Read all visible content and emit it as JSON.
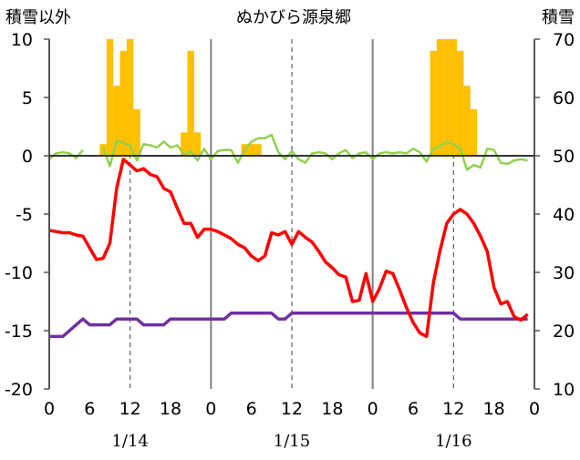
{
  "chart_data": {
    "type": "bar+line",
    "title": "ぬかびら源泉郷",
    "left_axis_label": "積雪以外",
    "right_axis_label": "積雪",
    "left_ylim": [
      -20,
      10
    ],
    "left_yticks": [
      10,
      5,
      0,
      -5,
      -10,
      -15,
      -20
    ],
    "right_ylim": [
      10,
      70
    ],
    "right_yticks": [
      70,
      60,
      50,
      40,
      30,
      20,
      10
    ],
    "x_range_hours": [
      0,
      72
    ],
    "x_tick_labels": [
      "0",
      "6",
      "12",
      "18",
      "0",
      "6",
      "12",
      "18",
      "0",
      "6",
      "12",
      "18",
      "0"
    ],
    "day_labels": [
      "1/14",
      "1/15",
      "1/16"
    ],
    "grid": "vertical solid lines at day boundaries, dashed at noon",
    "colors": {
      "precip": "#ffc000",
      "snow_diff": "#92d050",
      "temperature": "#ff0000",
      "snow_depth": "#7030a0",
      "grid_solid": "#808080",
      "grid_dashed": "#606060"
    },
    "precip_bars": {
      "axis": "left",
      "hours": [
        8,
        9,
        10,
        11,
        12,
        13,
        20,
        21,
        22,
        29,
        30,
        31,
        57,
        58,
        59,
        60,
        61,
        62,
        63
      ],
      "values": [
        1,
        10,
        6,
        9,
        10,
        4,
        2,
        9,
        2,
        1,
        1,
        1,
        9,
        10,
        10,
        10,
        9,
        6,
        4
      ]
    },
    "snow_diff_line": {
      "axis": "left",
      "hours": [
        0,
        1,
        2,
        3,
        4,
        5,
        6,
        7,
        8,
        9,
        10,
        11,
        12,
        13,
        14,
        15,
        16,
        17,
        18,
        19,
        20,
        21,
        22,
        23,
        24,
        25,
        26,
        27,
        28,
        29,
        30,
        31,
        32,
        33,
        34,
        35,
        36,
        37,
        38,
        39,
        40,
        41,
        42,
        43,
        44,
        45,
        46,
        47,
        48,
        49,
        50,
        51,
        52,
        53,
        54,
        55,
        56,
        57,
        58,
        59,
        60,
        61,
        62,
        63,
        64,
        65,
        66,
        67,
        68,
        69,
        70,
        71
      ],
      "values": [
        -0.3,
        0.2,
        0.3,
        0.2,
        -0.2,
        0.5,
        null,
        null,
        0.7,
        -0.9,
        1.3,
        1.1,
        0.9,
        -0.4,
        1.0,
        0.9,
        0.7,
        1.2,
        0.7,
        0.9,
        0.1,
        0.4,
        -0.4,
        0.6,
        -0.3,
        0.4,
        0.5,
        0.5,
        -0.6,
        0.5,
        1.2,
        1.5,
        1.5,
        1.8,
        0.3,
        -0.3,
        0.4,
        -0.3,
        -0.6,
        0.2,
        0.3,
        0.2,
        -0.3,
        0.2,
        0.5,
        -0.2,
        0.2,
        0.3,
        -0.3,
        0.2,
        0.3,
        0.2,
        0.3,
        0.2,
        0.6,
        0.3,
        -0.5,
        0.6,
        0.8,
        1.2,
        1.0,
        0.6,
        -1.2,
        -0.8,
        -1.0,
        0.6,
        0.5,
        -0.6,
        -0.7,
        -0.4,
        -0.3,
        -0.4
      ]
    },
    "temperature_line": {
      "axis": "left",
      "hours": [
        0,
        1,
        2,
        3,
        4,
        5,
        6,
        7,
        8,
        9,
        10,
        11,
        12,
        13,
        14,
        15,
        16,
        17,
        18,
        19,
        20,
        21,
        22,
        23,
        24,
        25,
        26,
        27,
        28,
        29,
        30,
        31,
        32,
        33,
        34,
        35,
        36,
        37,
        38,
        39,
        40,
        41,
        42,
        43,
        44,
        45,
        46,
        47,
        48,
        49,
        50,
        51,
        52,
        53,
        54,
        55,
        56,
        57,
        58,
        59,
        60,
        61,
        62,
        63,
        64,
        65,
        66,
        67,
        68,
        69,
        70,
        71
      ],
      "values": [
        -6.4,
        -6.5,
        -6.6,
        -6.6,
        -6.8,
        -6.9,
        -7.9,
        -8.9,
        -8.8,
        -7.5,
        -2.8,
        -0.3,
        -0.8,
        -1.3,
        -1.1,
        -1.6,
        -1.8,
        -2.8,
        -3.1,
        -4.5,
        -5.8,
        -5.8,
        -7.0,
        -6.3,
        -6.3,
        -6.5,
        -6.8,
        -7.1,
        -7.6,
        -7.9,
        -8.6,
        -9.0,
        -8.6,
        -6.6,
        -6.8,
        -6.5,
        -7.6,
        -6.5,
        -7.0,
        -7.4,
        -8.2,
        -9.1,
        -9.6,
        -10.2,
        -10.4,
        -12.5,
        -12.4,
        -10.1,
        -12.5,
        -11.4,
        -9.9,
        -10.1,
        -11.5,
        -13.0,
        -14.3,
        -15.2,
        -15.5,
        -10.9,
        -8.1,
        -5.8,
        -5.0,
        -4.6,
        -5.0,
        -5.8,
        -6.9,
        -8.2,
        -11.3,
        -12.7,
        -12.5,
        -13.8,
        -14.1,
        -13.6
      ]
    },
    "snow_depth_line": {
      "axis": "right",
      "hours": [
        0,
        2,
        4,
        5,
        6,
        9,
        10,
        13,
        14,
        17,
        18,
        22,
        23,
        24,
        26,
        27,
        33,
        34,
        35,
        36,
        48,
        60,
        61,
        62,
        71
      ],
      "values": [
        19,
        19,
        21,
        22,
        21,
        21,
        22,
        22,
        21,
        21,
        22,
        22,
        22,
        22,
        22,
        23,
        23,
        22,
        22,
        23,
        23,
        23,
        22,
        22,
        22
      ]
    }
  }
}
